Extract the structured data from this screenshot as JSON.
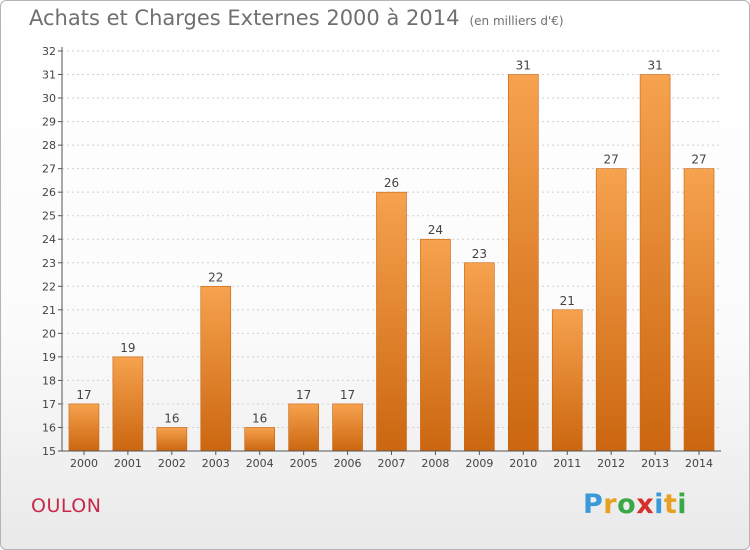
{
  "title": "Achats et Charges Externes 2000 à 2014",
  "unit": "(en milliers d'€)",
  "place": "OULON",
  "logo": {
    "letters": [
      "P",
      "r",
      "o",
      "x",
      "i",
      "t",
      "i"
    ],
    "colors": [
      "#3a9ad9",
      "#e8a020",
      "#3aa848",
      "#d6302a",
      "#3a9ad9",
      "#e8a020",
      "#3aa848"
    ]
  },
  "colors": {
    "bar_top": "#f6a24e",
    "bar_bottom": "#cc6610",
    "bar_edge": "#c86210",
    "axis": "#555555",
    "grid": "#d0d0d0",
    "text": "#444444"
  },
  "chart_data": {
    "type": "bar",
    "title": "Achats et Charges Externes 2000 à 2014",
    "subtitle": "(en milliers d'€)",
    "categories": [
      "2000",
      "2001",
      "2002",
      "2003",
      "2004",
      "2005",
      "2006",
      "2007",
      "2008",
      "2009",
      "2010",
      "2011",
      "2012",
      "2013",
      "2014"
    ],
    "values": [
      17,
      19,
      16,
      22,
      16,
      17,
      17,
      26,
      24,
      23,
      31,
      21,
      27,
      31,
      27
    ],
    "ylim": [
      15,
      32
    ],
    "yticks": [
      15,
      16,
      17,
      18,
      19,
      20,
      21,
      22,
      23,
      24,
      25,
      26,
      27,
      28,
      29,
      30,
      31,
      32
    ],
    "grid": true,
    "data_labels": true
  }
}
